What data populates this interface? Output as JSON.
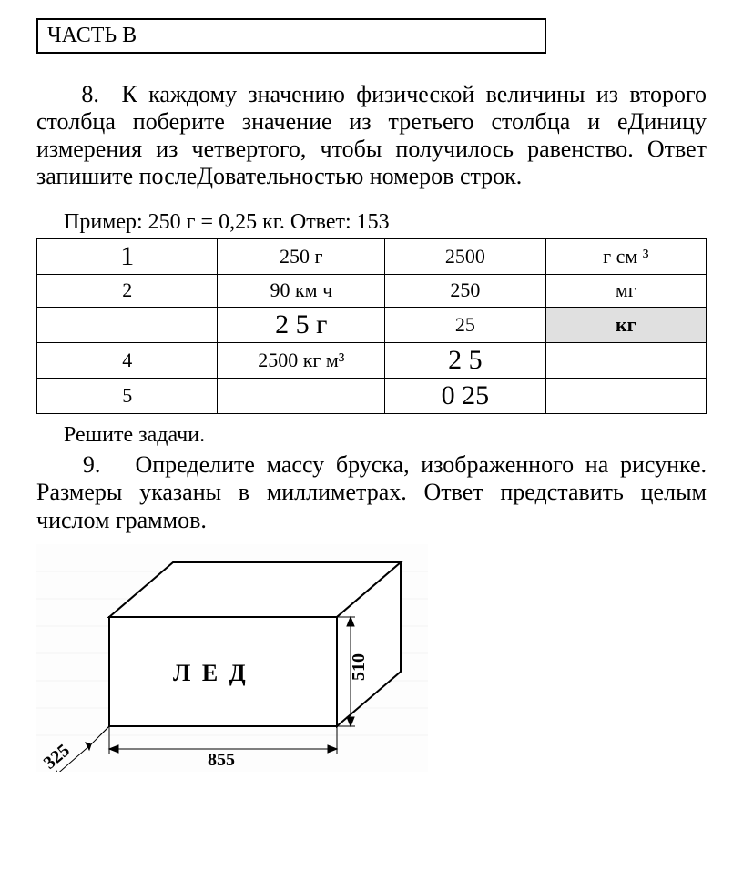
{
  "header": {
    "title": "ЧАСТЬ В"
  },
  "task8": {
    "number": "8.",
    "text": "К каждому значению физической величины из второго столбца поберите значение из третьего столбца и еДиницу измерения из четвертого, чтобы получилось равенство. Ответ запишите послеДовательностью номеров строк.",
    "example": "Пример: 250 г = 0,25 кг. Ответ: 153"
  },
  "table": {
    "rows": [
      {
        "c1": "1",
        "c2": "250 г",
        "c3": "2500",
        "c4": "г см ³",
        "c1_big": true,
        "c3_big": false,
        "c4_hl": false
      },
      {
        "c1": "2",
        "c2": "90 км ч",
        "c3": "250",
        "c4": "мг",
        "c1_big": false,
        "c3_big": false,
        "c4_hl": false
      },
      {
        "c1": "",
        "c2": "2 5 г",
        "c3": "25",
        "c4": "кг",
        "c1_big": false,
        "c2_big": true,
        "c3_big": false,
        "c4_hl": true
      },
      {
        "c1": "4",
        "c2": "2500 кг м³",
        "c3": "2 5",
        "c4": "",
        "c1_big": false,
        "c3_big": true,
        "c4_hl": false
      },
      {
        "c1": "5",
        "c2": "",
        "c3": "0 25",
        "c4": "",
        "c1_big": false,
        "c3_big": true,
        "c4_hl": false
      }
    ]
  },
  "solve": {
    "text": "Решите задачи."
  },
  "task9": {
    "number": "9.",
    "text": "Определите массу бруска, изображенного на рисунке. Размеры указаны в миллиметрах. Ответ представить целым числом граммов."
  },
  "diagram": {
    "label": "Л Е Д",
    "dim_depth": "325",
    "dim_width": "855",
    "dim_height": "510",
    "colors": {
      "stroke": "#000000",
      "fill": "#ffffff",
      "grid": "#f0f0f0",
      "ghost": "#d0d0d0"
    },
    "line_width_main": 2,
    "line_width_dim": 1
  }
}
